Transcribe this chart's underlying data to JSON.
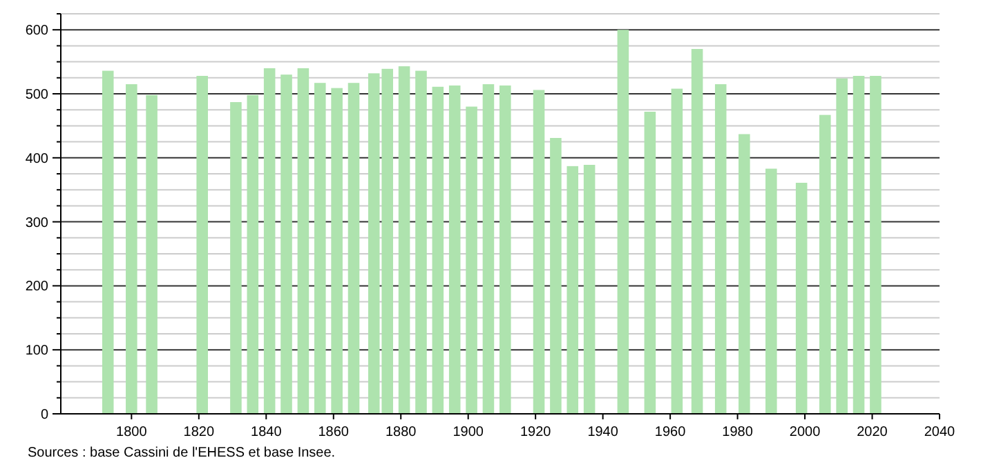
{
  "chart_data": {
    "type": "bar",
    "color": "#aee3ae",
    "x": [
      1793,
      1800,
      1806,
      1821,
      1831,
      1836,
      1841,
      1846,
      1851,
      1856,
      1861,
      1866,
      1872,
      1876,
      1881,
      1886,
      1891,
      1896,
      1901,
      1906,
      1911,
      1921,
      1926,
      1931,
      1936,
      1946,
      1954,
      1962,
      1968,
      1975,
      1982,
      1990,
      1999,
      2006,
      2011,
      2016,
      2021
    ],
    "values": [
      536,
      515,
      498,
      528,
      487,
      498,
      540,
      530,
      540,
      517,
      509,
      517,
      532,
      539,
      543,
      536,
      511,
      513,
      480,
      515,
      513,
      506,
      431,
      387,
      389,
      600,
      472,
      508,
      570,
      515,
      437,
      383,
      361,
      467,
      524,
      528,
      528
    ],
    "xlim": [
      1779,
      2040
    ],
    "xticks": [
      1800,
      1820,
      1840,
      1860,
      1880,
      1900,
      1920,
      1940,
      1960,
      1980,
      2000,
      2020,
      2040
    ],
    "ylim": [
      0,
      625
    ],
    "yticks": [
      0,
      {
        "value": 25,
        "label": null
      },
      {
        "value": 50,
        "label": null
      },
      {
        "value": 75,
        "label": null
      },
      100,
      {
        "value": 125,
        "label": null
      },
      {
        "value": 150,
        "label": null
      },
      {
        "value": 175,
        "label": null
      },
      200,
      {
        "value": 225,
        "label": null
      },
      {
        "value": 250,
        "label": null
      },
      {
        "value": 275,
        "label": null
      },
      300,
      {
        "value": 325,
        "label": null
      },
      {
        "value": 350,
        "label": null
      },
      {
        "value": 375,
        "label": null
      },
      400,
      {
        "value": 425,
        "label": null
      },
      {
        "value": 450,
        "label": null
      },
      {
        "value": 475,
        "label": null
      },
      500,
      {
        "value": 525,
        "label": null
      },
      {
        "value": 550,
        "label": null
      },
      {
        "value": 575,
        "label": null
      },
      600,
      {
        "value": 625,
        "label": null
      }
    ],
    "grid": "y",
    "annotations": [
      "Sources : base Cassini de l'EHESS et base Insee."
    ]
  }
}
